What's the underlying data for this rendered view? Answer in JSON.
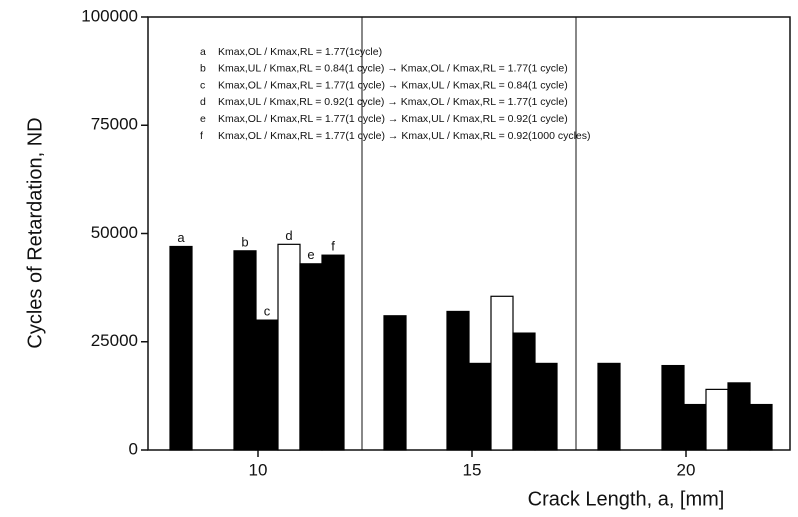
{
  "chart_data": {
    "type": "bar",
    "x_label": "Crack Length, a, [mm]",
    "y_label": "Cycles of Retardation, ND",
    "categories": [
      "10",
      "15",
      "20"
    ],
    "ylim": [
      0,
      100000
    ],
    "yticks": [
      0,
      25000,
      50000,
      75000,
      100000
    ],
    "grid": false,
    "series": [
      {
        "name": "a",
        "color": "#000000",
        "legend_text": "Kmax,OL / Kmax,RL = 1.77(1cycle)",
        "values": [
          47000,
          31000,
          20000
        ]
      },
      {
        "name": "b",
        "color": "#000000",
        "legend_text": "Kmax,UL / Kmax,RL = 0.84(1 cycle) → Kmax,OL / Kmax,RL = 1.77(1 cycle)",
        "values": [
          46000,
          32000,
          19500
        ]
      },
      {
        "name": "c",
        "color": "#000000",
        "legend_text": "Kmax,OL / Kmax,RL = 1.77(1 cycle) → Kmax,UL / Kmax,RL = 0.84(1 cycle)",
        "values": [
          30000,
          20000,
          10500
        ]
      },
      {
        "name": "d",
        "color": "#ffffff",
        "legend_text": "Kmax,UL / Kmax,RL = 0.92(1 cycle) → Kmax,OL / Kmax,RL = 1.77(1 cycle)",
        "values": [
          47500,
          35500,
          14000
        ]
      },
      {
        "name": "e",
        "color": "#000000",
        "legend_text": "Kmax,OL / Kmax,RL = 1.77(1 cycle) → Kmax,UL / Kmax,RL = 0.92(1 cycle)",
        "values": [
          43000,
          27000,
          15500
        ]
      },
      {
        "name": "f",
        "color": "#000000",
        "legend_text": "Kmax,OL / Kmax,RL = 1.77(1 cycle) → Kmax,UL / Kmax,RL = 0.92(1000 cycles)",
        "values": [
          45000,
          20000,
          10500
        ]
      }
    ]
  }
}
